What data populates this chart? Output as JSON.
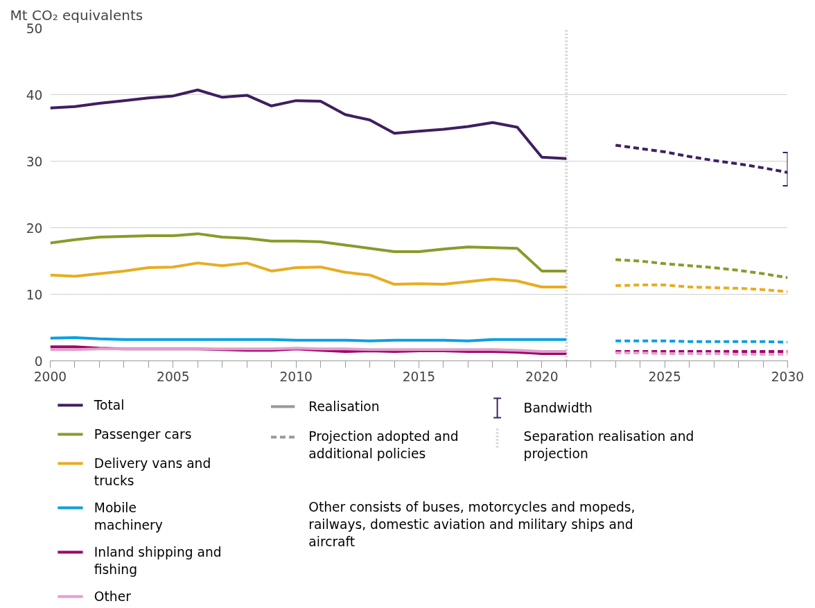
{
  "chart_data": {
    "type": "line",
    "ylabel": "Mt CO₂ equivalents",
    "x": [
      2000,
      2001,
      2002,
      2003,
      2004,
      2005,
      2006,
      2007,
      2008,
      2009,
      2010,
      2011,
      2012,
      2013,
      2014,
      2015,
      2016,
      2017,
      2018,
      2019,
      2020,
      2021
    ],
    "xlim": [
      2000,
      2030
    ],
    "xticks": [
      2000,
      2005,
      2010,
      2015,
      2020,
      2025,
      2030
    ],
    "ylim": [
      0,
      50
    ],
    "yticks": [
      0,
      10,
      20,
      30,
      40,
      50
    ],
    "grid": "y",
    "legend": "bottom",
    "line_style": "solid",
    "series": [
      {
        "name": "Total",
        "color": "#3f1f5f",
        "values": [
          38.0,
          38.2,
          38.7,
          39.1,
          39.5,
          39.8,
          40.7,
          39.6,
          39.9,
          38.3,
          39.1,
          39.0,
          37.0,
          36.2,
          34.2,
          34.5,
          34.8,
          35.2,
          35.8,
          35.1,
          30.6,
          30.4
        ]
      },
      {
        "name": "Passenger cars",
        "color": "#8a9a2b",
        "values": [
          17.7,
          18.2,
          18.6,
          18.7,
          18.8,
          18.8,
          19.1,
          18.6,
          18.4,
          18.0,
          18.0,
          17.9,
          17.4,
          16.9,
          16.4,
          16.4,
          16.8,
          17.1,
          17.0,
          16.9,
          13.5,
          13.5
        ]
      },
      {
        "name": "Delivery vans and trucks",
        "color": "#e8ac20",
        "values": [
          12.9,
          12.7,
          13.1,
          13.5,
          14.0,
          14.1,
          14.7,
          14.3,
          14.7,
          13.5,
          14.0,
          14.1,
          13.3,
          12.9,
          11.5,
          11.6,
          11.5,
          11.9,
          12.3,
          12.0,
          11.1,
          11.1
        ]
      },
      {
        "name": "Mobile machinery",
        "color": "#0aa0e0",
        "values": [
          3.4,
          3.5,
          3.3,
          3.2,
          3.2,
          3.2,
          3.2,
          3.2,
          3.2,
          3.2,
          3.1,
          3.1,
          3.1,
          3.0,
          3.1,
          3.1,
          3.1,
          3.0,
          3.2,
          3.2,
          3.2,
          3.2
        ]
      },
      {
        "name": "Inland shipping and fishing",
        "color": "#a0006a",
        "values": [
          2.1,
          2.1,
          1.9,
          1.8,
          1.8,
          1.8,
          1.8,
          1.7,
          1.6,
          1.6,
          1.8,
          1.6,
          1.4,
          1.5,
          1.4,
          1.5,
          1.5,
          1.4,
          1.4,
          1.3,
          1.1,
          1.1
        ]
      },
      {
        "name": "Other",
        "color": "#e0a0cc",
        "values": [
          1.7,
          1.7,
          1.8,
          1.8,
          1.8,
          1.8,
          1.8,
          1.8,
          1.8,
          1.8,
          1.9,
          1.8,
          1.8,
          1.7,
          1.7,
          1.7,
          1.7,
          1.7,
          1.7,
          1.6,
          1.4,
          1.4
        ]
      },
      {
        "color": "#3f1f5f",
        "line_style": "dashed",
        "x": [
          2023,
          2024,
          2025,
          2026,
          2027,
          2028,
          2029,
          2030
        ],
        "values": [
          32.4,
          31.9,
          31.4,
          30.7,
          30.1,
          29.6,
          29.0,
          28.3
        ],
        "errors": [
          null,
          null,
          null,
          null,
          null,
          null,
          null,
          [
            26.3,
            31.3
          ]
        ]
      },
      {
        "color": "#8a9a2b",
        "line_style": "dashed",
        "x": [
          2023,
          2024,
          2025,
          2026,
          2027,
          2028,
          2029,
          2030
        ],
        "values": [
          15.2,
          15.0,
          14.6,
          14.3,
          14.0,
          13.6,
          13.1,
          12.5
        ]
      },
      {
        "color": "#e8ac20",
        "line_style": "dashed",
        "x": [
          2023,
          2024,
          2025,
          2026,
          2027,
          2028,
          2029,
          2030
        ],
        "values": [
          11.3,
          11.4,
          11.4,
          11.1,
          11.0,
          10.9,
          10.7,
          10.4
        ]
      },
      {
        "color": "#0aa0e0",
        "line_style": "dashed",
        "x": [
          2023,
          2024,
          2025,
          2026,
          2027,
          2028,
          2029,
          2030
        ],
        "values": [
          3.0,
          3.0,
          3.0,
          2.9,
          2.9,
          2.9,
          2.9,
          2.8
        ]
      },
      {
        "color": "#a0006a",
        "line_style": "dashed",
        "x": [
          2023,
          2024,
          2025,
          2026,
          2027,
          2028,
          2029,
          2030
        ],
        "values": [
          1.4,
          1.4,
          1.4,
          1.4,
          1.4,
          1.4,
          1.4,
          1.4
        ]
      },
      {
        "color": "#e0a0cc",
        "line_style": "dashed",
        "x": [
          2023,
          2024,
          2025,
          2026,
          2027,
          2028,
          2029,
          2030
        ],
        "values": [
          1.2,
          1.2,
          1.1,
          1.1,
          1.1,
          1.0,
          1.0,
          1.0
        ]
      }
    ],
    "ref_lines": [
      {
        "axis": "x",
        "value": 2021,
        "label": "Separation realisation and projection",
        "color": "#d0d0d0",
        "line_style": "dotted"
      }
    ],
    "annotations": [
      "Realisation",
      "Projection adopted and additional policies",
      "Bandwidth",
      "Other consists of buses, motorcycles and mopeds, railways, domestic aviation and military ships and aircraft"
    ]
  }
}
